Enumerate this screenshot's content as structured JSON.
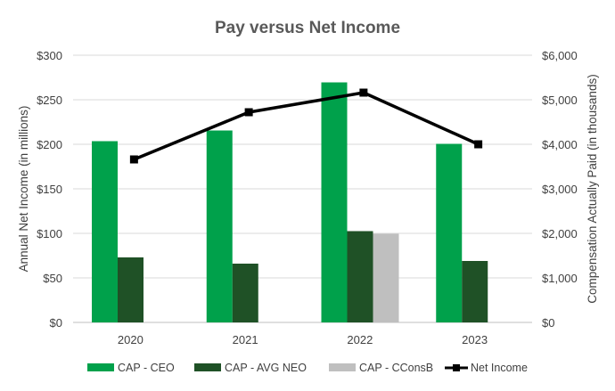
{
  "chart_data": {
    "type": "bar",
    "title": "Pay versus Net Income",
    "categories": [
      "2020",
      "2021",
      "2022",
      "2023"
    ],
    "xlabel": "",
    "ylabel": "Annual Net Income (in millions)",
    "y2label": "Compensation Actually Paid (in thousands)",
    "ylim": [
      0,
      300
    ],
    "y2lim": [
      0,
      6000
    ],
    "yticks": [
      "$0",
      "$50",
      "$100",
      "$150",
      "$200",
      "$250",
      "$300"
    ],
    "y2ticks": [
      "$0",
      "$1,000",
      "$2,000",
      "$3,000",
      "$4,000",
      "$5,000",
      "$6,000"
    ],
    "grid": true,
    "legend_position": "bottom",
    "series": [
      {
        "name": "CAP - CEO",
        "kind": "bar",
        "axis": "right",
        "color": "#00A14B",
        "values": [
          4070,
          4310,
          5390,
          4010
        ]
      },
      {
        "name": "CAP - AVG NEO",
        "kind": "bar",
        "axis": "right",
        "color": "#1F5126",
        "values": [
          1460,
          1320,
          2050,
          1380
        ]
      },
      {
        "name": "CAP - CConsB",
        "kind": "bar",
        "axis": "right",
        "color": "#BFBFBF",
        "values": [
          null,
          null,
          1990,
          null
        ]
      },
      {
        "name": "Net Income",
        "kind": "line",
        "axis": "left",
        "color": "#000000",
        "marker": "square",
        "values": [
          183,
          236,
          258,
          200
        ]
      }
    ]
  }
}
